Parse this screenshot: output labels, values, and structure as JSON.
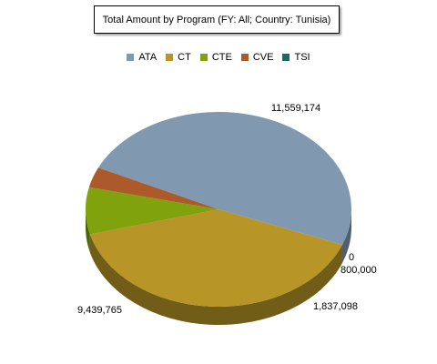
{
  "chart_data": {
    "type": "pie",
    "title": "Total Amount by Program (FY: All; Country: Tunisia)",
    "legend_position": "top",
    "series": [
      {
        "name": "ATA",
        "value": 11559174,
        "label": "11,559,174",
        "color": "#8099b0"
      },
      {
        "name": "CT",
        "value": 9439765,
        "label": "9,439,765",
        "color": "#b79526"
      },
      {
        "name": "CTE",
        "value": 1837098,
        "label": "1,837,098",
        "color": "#7fa20d"
      },
      {
        "name": "CVE",
        "value": 800000,
        "label": "800,000",
        "color": "#ad5a2b"
      },
      {
        "name": "TSI",
        "value": 0,
        "label": "0",
        "color": "#1b6a62"
      }
    ]
  }
}
